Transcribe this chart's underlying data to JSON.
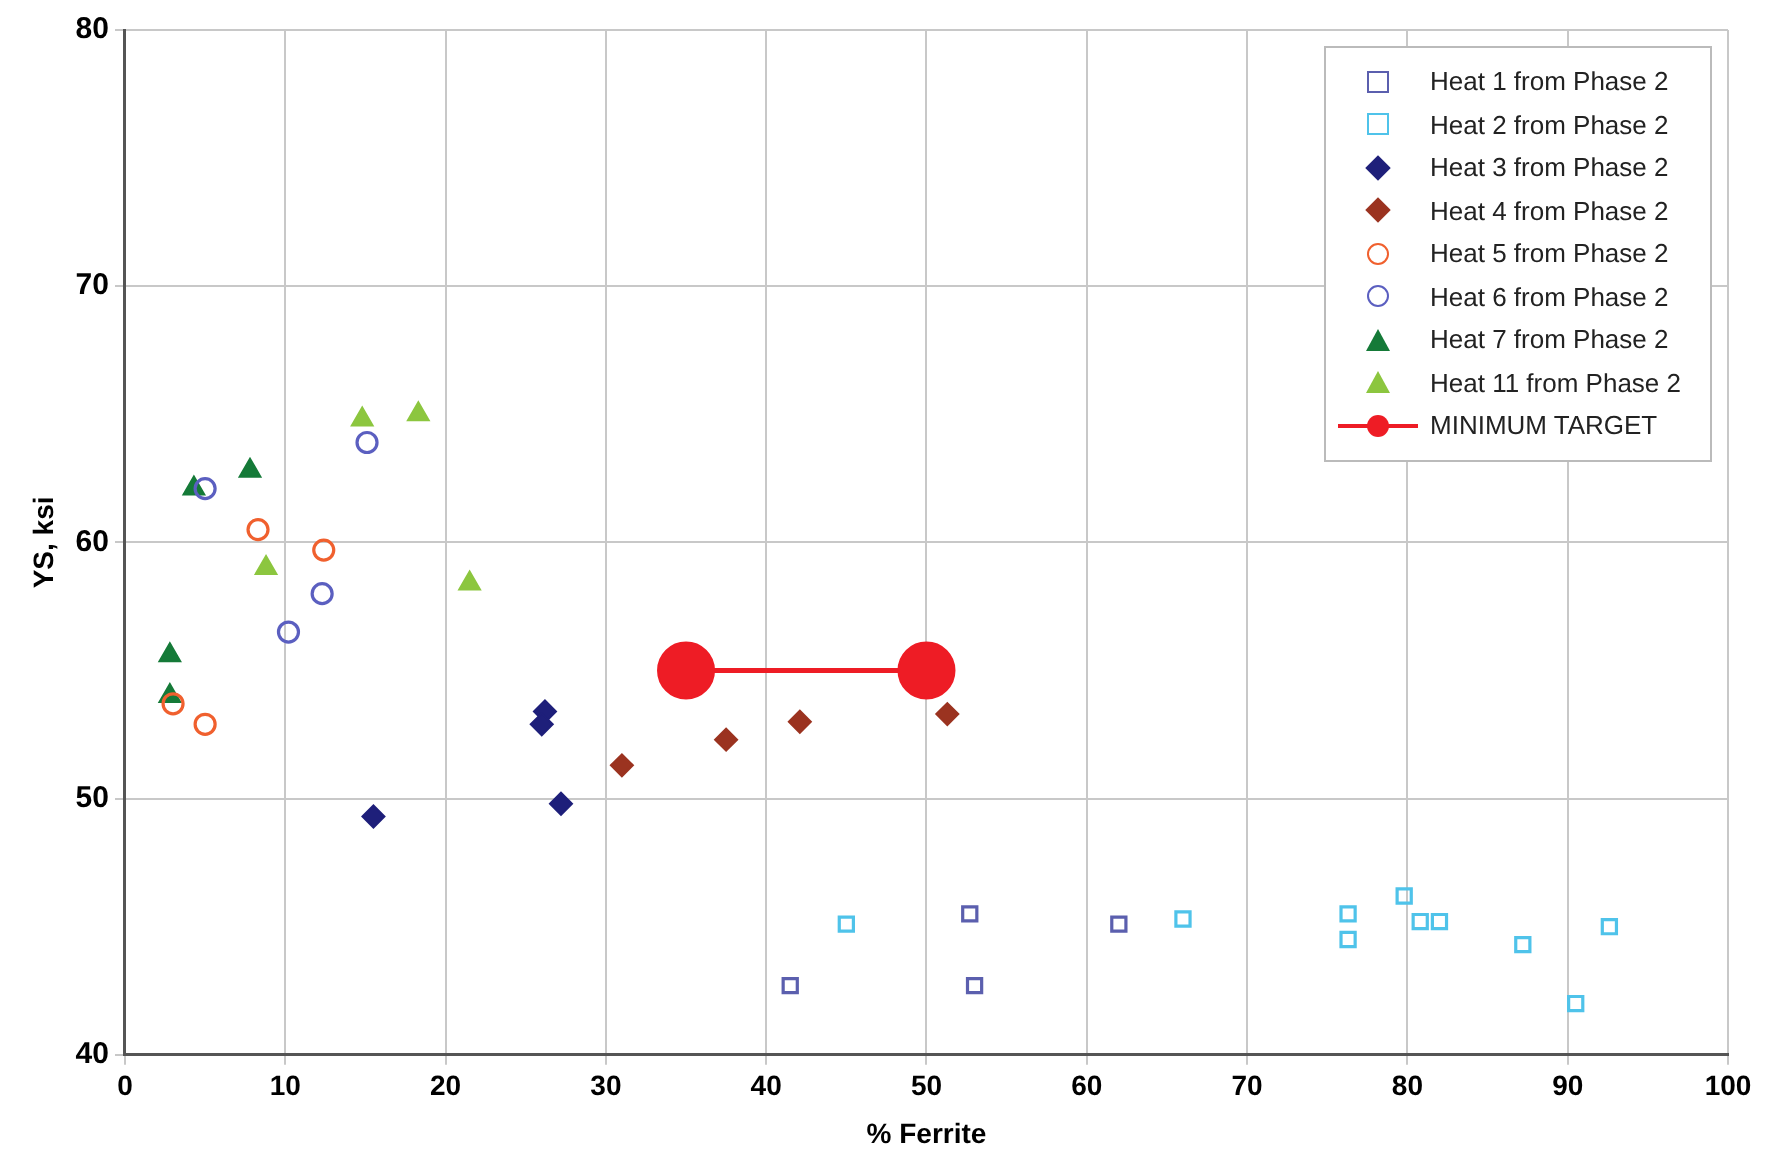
{
  "chart_data": {
    "type": "scatter",
    "xlabel": "% Ferrite",
    "ylabel": "YS, ksi",
    "xlim": [
      0,
      100
    ],
    "xticks": [
      0,
      10,
      20,
      30,
      40,
      50,
      60,
      70,
      80,
      90,
      100
    ],
    "ylim": [
      40,
      80
    ],
    "yticks": [
      40,
      50,
      60,
      70,
      80
    ],
    "grid": true,
    "legend": "top right",
    "series": [
      {
        "name": "Heat 1 from Phase 2",
        "color": "#5b5fae",
        "marker": "square",
        "x": [
          41.5,
          52.7,
          53,
          62
        ],
        "values": [
          42.7,
          45.5,
          42.7,
          45.1
        ]
      },
      {
        "name": "Heat 2 from Phase 2",
        "color": "#4fc3ea",
        "marker": "square",
        "x": [
          45,
          66,
          76.3,
          76.3,
          79.8,
          80.8,
          82,
          87.2,
          90.5,
          92.6
        ],
        "values": [
          45.1,
          45.3,
          45.5,
          44.5,
          46.2,
          45.2,
          45.2,
          44.3,
          42,
          45
        ]
      },
      {
        "name": "Heat 3 from Phase 2",
        "color": "#1e1f7a",
        "marker": "diamond",
        "x": [
          15.5,
          26.2,
          26,
          27.2
        ],
        "values": [
          49.3,
          53.4,
          52.9,
          49.8
        ]
      },
      {
        "name": "Heat 4 from Phase 2",
        "color": "#9b3320",
        "marker": "diamond",
        "x": [
          31,
          37.5,
          42.1,
          51.3
        ],
        "values": [
          51.3,
          52.3,
          53,
          53.3
        ]
      },
      {
        "name": "Heat 5 from Phase 2",
        "color": "#f0602e",
        "marker": "circle",
        "x": [
          3,
          5,
          8.3,
          12.4
        ],
        "values": [
          53.7,
          52.9,
          60.5,
          59.7
        ]
      },
      {
        "name": "Heat 6 from Phase 2",
        "color": "#5b5fc0",
        "marker": "circle",
        "x": [
          5,
          10.2,
          12.3,
          15.1
        ],
        "values": [
          62.1,
          56.5,
          58,
          63.9
        ]
      },
      {
        "name": "Heat 7 from Phase 2",
        "color": "#157a38",
        "marker": "triangle",
        "x": [
          2.8,
          2.8,
          4.3,
          7.8
        ],
        "values": [
          55.6,
          54,
          62.1,
          62.8
        ]
      },
      {
        "name": "Heat 11 from Phase 2",
        "color": "#8cc63f",
        "marker": "triangle",
        "x": [
          14.8,
          18.3,
          8.8,
          21.5
        ],
        "values": [
          64.8,
          65,
          59,
          58.4
        ]
      },
      {
        "name": "MINIMUM TARGET",
        "type": "line",
        "color": "#ee1c25",
        "marker": "circle",
        "line_style": "solid",
        "x": [
          35,
          50
        ],
        "values": [
          55,
          55
        ]
      }
    ]
  }
}
